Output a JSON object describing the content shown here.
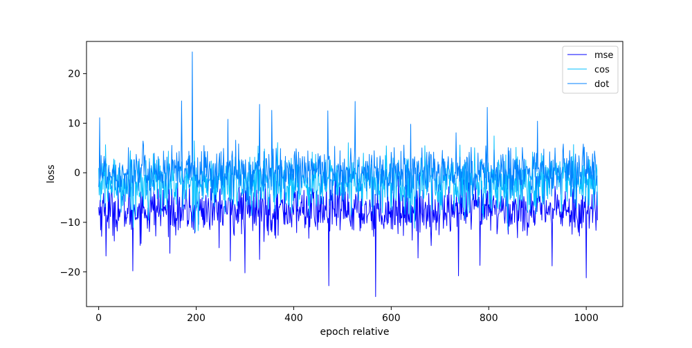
{
  "chart_data": {
    "type": "line",
    "title": "",
    "xlabel": "epoch relative",
    "ylabel": "loss",
    "xlim": [
      -25,
      1075
    ],
    "ylim": [
      -27,
      26.5
    ],
    "xticks": [
      0,
      200,
      400,
      600,
      800,
      1000
    ],
    "xtick_labels": [
      "0",
      "200",
      "400",
      "600",
      "800",
      "1000"
    ],
    "yticks": [
      -20,
      -10,
      0,
      10,
      20
    ],
    "ytick_labels": [
      "−20",
      "−10",
      "0",
      "10",
      "20"
    ],
    "grid": false,
    "legend_position": "top-right",
    "x": {
      "start": 0,
      "end": 1023,
      "step": 1
    },
    "series": [
      {
        "name": "mse",
        "color": "#0000ff",
        "mean": -7.5,
        "spread": 2.5,
        "spikes": [
          {
            "x": 70,
            "y": -19.8
          },
          {
            "x": 15,
            "y": -16.8
          },
          {
            "x": 300,
            "y": -20.2
          },
          {
            "x": 330,
            "y": -17.5
          },
          {
            "x": 472,
            "y": -22.8
          },
          {
            "x": 568,
            "y": -25.0
          },
          {
            "x": 738,
            "y": -20.8
          },
          {
            "x": 782,
            "y": -18.7
          },
          {
            "x": 930,
            "y": -18.8
          },
          {
            "x": 1000,
            "y": -21.2
          },
          {
            "x": 270,
            "y": -17.8
          },
          {
            "x": 655,
            "y": -17.2
          }
        ]
      },
      {
        "name": "cos",
        "color": "#00bfff",
        "mean": -2.0,
        "spread": 3.0,
        "spikes": []
      },
      {
        "name": "dot",
        "color": "#0080ff",
        "mean": 0.0,
        "spread": 2.5,
        "spikes": [
          {
            "x": 2,
            "y": 11.1
          },
          {
            "x": 170,
            "y": 14.5
          },
          {
            "x": 192,
            "y": 24.4
          },
          {
            "x": 330,
            "y": 13.8
          },
          {
            "x": 355,
            "y": 12.6
          },
          {
            "x": 470,
            "y": 12.5
          },
          {
            "x": 526,
            "y": 14.4
          },
          {
            "x": 797,
            "y": 13.2
          },
          {
            "x": 265,
            "y": 10.8
          },
          {
            "x": 640,
            "y": 9.8
          },
          {
            "x": 900,
            "y": 10.4
          }
        ]
      }
    ]
  }
}
